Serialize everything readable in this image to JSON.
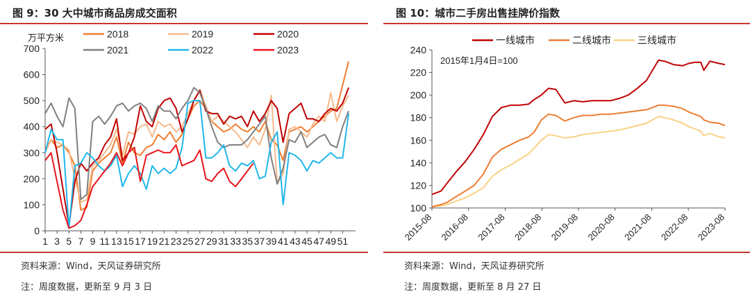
{
  "panels": {
    "left": {
      "title": "图 9：30 大中城市商品房成交面积",
      "source": "资料来源：Wind，天风证券研究所",
      "note": "注：周度数据，更新至 9 月 3 日"
    },
    "right": {
      "title": "图 10：城市二手房出售挂牌价指数",
      "source": "资料来源：Wind，天风证券研究所",
      "note": "注：周度数据，更新至 8 月 27 日"
    }
  },
  "chart_data": [
    {
      "type": "line",
      "ylabel": "万平方米",
      "ylim": [
        0,
        700
      ],
      "yticks": [
        0,
        100,
        200,
        300,
        400,
        500,
        600,
        700
      ],
      "xlim": [
        1,
        52
      ],
      "xticks": [
        1,
        3,
        5,
        7,
        9,
        11,
        13,
        15,
        17,
        19,
        21,
        23,
        25,
        27,
        29,
        31,
        33,
        35,
        37,
        39,
        41,
        43,
        45,
        47,
        49,
        51
      ],
      "legend_position": "top",
      "series": [
        {
          "name": "2018",
          "color": "#ed7d31",
          "width": 2,
          "values": [
            310,
            350,
            320,
            330,
            300,
            250,
            80,
            90,
            230,
            260,
            280,
            300,
            360,
            260,
            340,
            300,
            290,
            320,
            330,
            370,
            350,
            380,
            340,
            370,
            430,
            480,
            500,
            470,
            420,
            400,
            380,
            390,
            410,
            390,
            380,
            400,
            380,
            420,
            350,
            330,
            270,
            380,
            390,
            400,
            380,
            400,
            420,
            440,
            460,
            470,
            560,
            650
          ]
        },
        {
          "name": "2019",
          "color": "#f6b98a",
          "width": 2,
          "values": [
            300,
            350,
            340,
            330,
            310,
            200,
            110,
            120,
            250,
            270,
            300,
            330,
            390,
            290,
            380,
            370,
            400,
            410,
            360,
            420,
            400,
            410,
            380,
            400,
            450,
            500,
            540,
            480,
            420,
            440,
            420,
            400,
            380,
            350,
            320,
            360,
            330,
            390,
            520,
            180,
            220,
            390,
            400,
            380,
            360,
            410,
            440,
            420,
            530,
            420,
            480,
            520
          ]
        },
        {
          "name": "2020",
          "color": "#c00000",
          "width": 2,
          "values": [
            390,
            410,
            300,
            160,
            20,
            190,
            260,
            230,
            260,
            280,
            330,
            360,
            430,
            270,
            300,
            360,
            480,
            420,
            400,
            470,
            500,
            510,
            470,
            380,
            430,
            500,
            540,
            460,
            450,
            450,
            410,
            440,
            430,
            440,
            400,
            460,
            420,
            450,
            500,
            470,
            340,
            450,
            470,
            490,
            430,
            430,
            420,
            450,
            470,
            460,
            490,
            550
          ]
        },
        {
          "name": "2021",
          "color": "#7f7f7f",
          "width": 2,
          "values": [
            450,
            490,
            440,
            400,
            510,
            470,
            120,
            140,
            420,
            440,
            410,
            440,
            480,
            490,
            460,
            480,
            490,
            470,
            420,
            480,
            460,
            460,
            430,
            470,
            500,
            550,
            530,
            470,
            400,
            340,
            320,
            330,
            330,
            330,
            350,
            380,
            410,
            440,
            280,
            180,
            240,
            350,
            340,
            380,
            320,
            340,
            360,
            370,
            330,
            320,
            400,
            460
          ]
        },
        {
          "name": "2022",
          "color": "#1fb6ea",
          "width": 2,
          "values": [
            300,
            390,
            350,
            350,
            10,
            250,
            260,
            300,
            280,
            250,
            230,
            250,
            290,
            170,
            220,
            250,
            220,
            160,
            250,
            220,
            240,
            220,
            240,
            320,
            490,
            500,
            500,
            280,
            280,
            300,
            330,
            250,
            230,
            260,
            250,
            270,
            200,
            210,
            340,
            380,
            100,
            300,
            290,
            270,
            230,
            270,
            260,
            280,
            300,
            280,
            280,
            450
          ]
        },
        {
          "name": "2023",
          "color": "#e8141b",
          "width": 2,
          "values": [
            270,
            300,
            190,
            80,
            10,
            20,
            40,
            100,
            170,
            200,
            230,
            260,
            300,
            250,
            300,
            320,
            190,
            290,
            300,
            310,
            300,
            300,
            330,
            250,
            260,
            270,
            310,
            200,
            190,
            220,
            240,
            190,
            170,
            200,
            230,
            260,
            null,
            null,
            null,
            null,
            null,
            null,
            null,
            null,
            null,
            null,
            null,
            null,
            null,
            null,
            null,
            null
          ]
        }
      ]
    },
    {
      "type": "line",
      "annotation": "2015年1月4日=100",
      "ylim": [
        100,
        240
      ],
      "yticks": [
        100,
        120,
        140,
        160,
        180,
        200,
        220,
        240
      ],
      "xlim": [
        2015.583,
        2023.667
      ],
      "xtick_labels": [
        "2015-08",
        "2016-08",
        "2017-08",
        "2018-08",
        "2019-08",
        "2020-08",
        "2021-08",
        "2022-08",
        "2023-08"
      ],
      "legend_position": "top",
      "x": [
        2015.583,
        2015.833,
        2016.0,
        2016.25,
        2016.5,
        2016.75,
        2017.0,
        2017.25,
        2017.5,
        2017.75,
        2018.0,
        2018.25,
        2018.4,
        2018.6,
        2018.8,
        2019.0,
        2019.25,
        2019.5,
        2019.75,
        2020.0,
        2020.25,
        2020.5,
        2020.75,
        2021.0,
        2021.25,
        2021.5,
        2021.667,
        2021.833,
        2022.0,
        2022.25,
        2022.5,
        2022.667,
        2022.833,
        2023.0,
        2023.083,
        2023.25,
        2023.5,
        2023.667
      ],
      "series": [
        {
          "name": "一线城市",
          "color": "#c00000",
          "width": 2,
          "values": [
            112,
            115,
            122,
            132,
            141,
            152,
            165,
            181,
            189,
            191,
            191,
            192,
            196,
            200,
            206,
            205,
            193,
            195,
            194,
            195,
            195,
            195,
            197,
            200,
            206,
            213,
            222,
            231,
            230,
            227,
            226,
            228,
            229,
            229,
            222,
            230,
            228,
            227
          ]
        },
        {
          "name": "二线城市",
          "color": "#ed7d31",
          "width": 2,
          "values": [
            101,
            103,
            105,
            110,
            115,
            120,
            130,
            145,
            152,
            156,
            160,
            163,
            167,
            178,
            183,
            182,
            177,
            180,
            182,
            182,
            183,
            183,
            184,
            185,
            186,
            187,
            189,
            191,
            191,
            190,
            188,
            185,
            183,
            181,
            178,
            176,
            175,
            173
          ]
        },
        {
          "name": "三线城市",
          "color": "#fad184",
          "width": 2,
          "values": [
            101,
            102,
            103,
            106,
            109,
            113,
            118,
            128,
            134,
            138,
            143,
            148,
            153,
            160,
            165,
            164,
            162,
            163,
            165,
            166,
            167,
            168,
            169,
            171,
            173,
            175,
            178,
            181,
            180,
            178,
            175,
            172,
            170,
            168,
            164,
            166,
            163,
            162
          ]
        }
      ]
    }
  ]
}
